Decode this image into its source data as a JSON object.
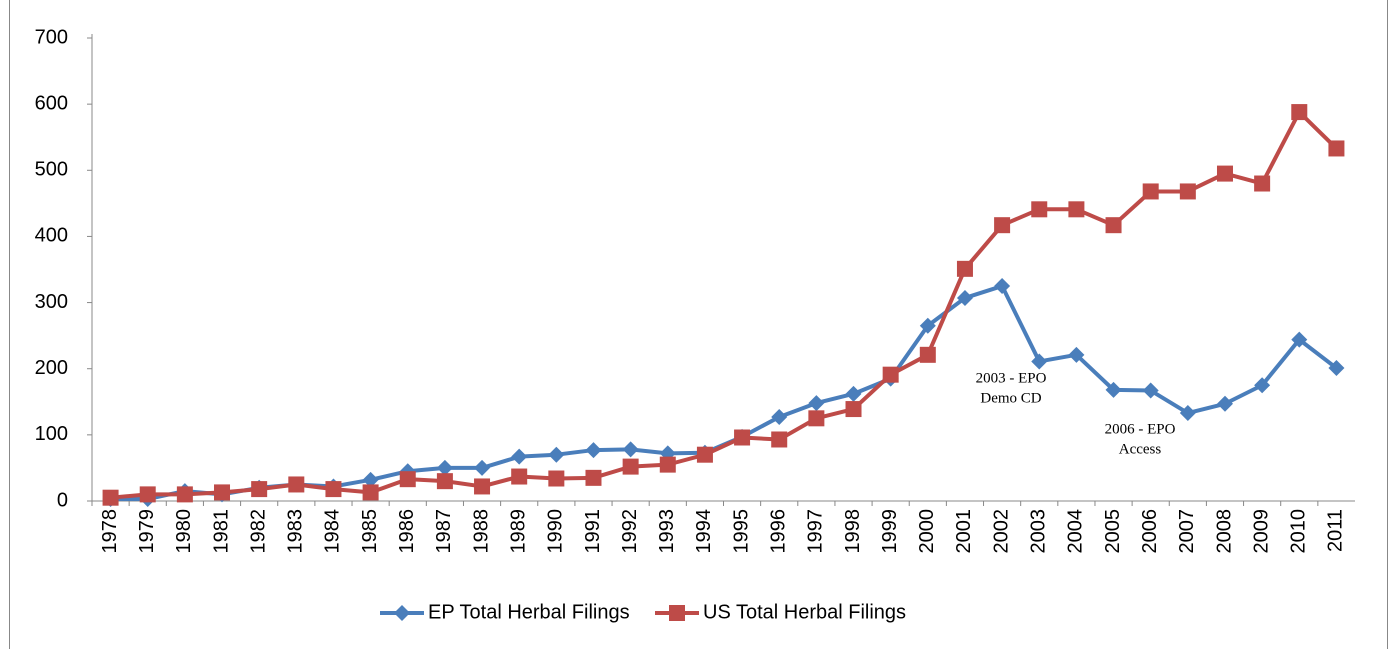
{
  "chart_data": {
    "type": "line",
    "categories": [
      "1978",
      "1979",
      "1980",
      "1981",
      "1982",
      "1983",
      "1984",
      "1985",
      "1986",
      "1987",
      "1988",
      "1989",
      "1990",
      "1991",
      "1992",
      "1993",
      "1994",
      "1995",
      "1996",
      "1997",
      "1998",
      "1999",
      "2000",
      "2001",
      "2002",
      "2003",
      "2004",
      "2005",
      "2006",
      "2007",
      "2008",
      "2009",
      "2010",
      "2011"
    ],
    "series": [
      {
        "name": "EP Total Herbal Filings",
        "color": "#4a7ebb",
        "marker": "diamond",
        "values": [
          3,
          3,
          15,
          10,
          20,
          25,
          22,
          32,
          45,
          50,
          50,
          67,
          70,
          77,
          78,
          72,
          73,
          97,
          127,
          148,
          162,
          185,
          265,
          307,
          325,
          211,
          221,
          168,
          167,
          133,
          147,
          175,
          244,
          201
        ]
      },
      {
        "name": "US Total Herbal Filings",
        "color": "#be4b48",
        "marker": "square",
        "values": [
          5,
          10,
          10,
          13,
          18,
          25,
          18,
          13,
          33,
          30,
          22,
          37,
          34,
          35,
          52,
          55,
          70,
          96,
          93,
          125,
          139,
          191,
          221,
          351,
          417,
          441,
          441,
          417,
          468,
          468,
          495,
          480,
          588,
          533
        ]
      }
    ],
    "ylim": [
      0,
      700
    ],
    "yticks": [
      0,
      100,
      200,
      300,
      400,
      500,
      600,
      700
    ],
    "legend": "bottom",
    "annotations": [
      {
        "lines": [
          "2003 - EPO",
          "Demo CD"
        ]
      },
      {
        "lines": [
          "2006 - EPO",
          "Access"
        ]
      }
    ]
  }
}
